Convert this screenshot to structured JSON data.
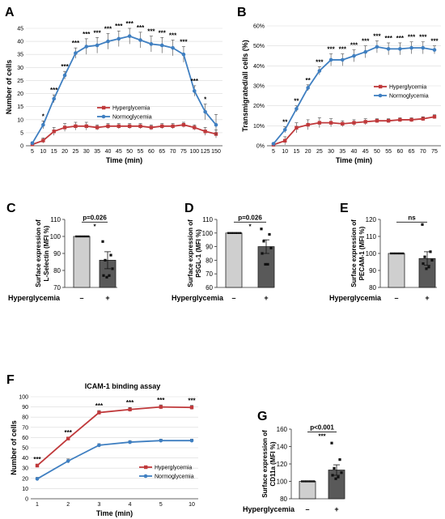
{
  "colors": {
    "hyper": "#c0393b",
    "normo": "#3f7fc1",
    "bar_light": "#cfcfcf",
    "bar_dark": "#595959",
    "axis": "#333333",
    "grid": "#d9d9d9"
  },
  "significance_rule": "—",
  "chart_data": [
    {
      "panel": "A",
      "type": "line",
      "title": "",
      "xlabel": "Time (min)",
      "ylabel": "Number of cells",
      "x": [
        "5",
        "10",
        "15",
        "20",
        "25",
        "30",
        "35",
        "40",
        "45",
        "50",
        "55",
        "60",
        "65",
        "70",
        "75",
        "100",
        "125",
        "150"
      ],
      "ylim": [
        0,
        45
      ],
      "yticks": [
        0,
        5,
        10,
        15,
        20,
        25,
        30,
        35,
        40,
        45
      ],
      "grid": true,
      "legend_position": "middle-left",
      "series": [
        {
          "name": "Hyperglycemia",
          "values": [
            0.5,
            2,
            5.5,
            7,
            7.5,
            7.5,
            7,
            7.5,
            7.5,
            7.5,
            7.5,
            7,
            7.5,
            7.5,
            8,
            7,
            5.5,
            4.5
          ],
          "errors": [
            0.5,
            1,
            1.5,
            1.5,
            1.5,
            1.5,
            1,
            1,
            1,
            1,
            1,
            1,
            1,
            1,
            1,
            1,
            1.5,
            1.5
          ]
        },
        {
          "name": "Normoglycemia",
          "values": [
            1,
            8,
            18,
            27,
            35.5,
            38,
            38.5,
            40,
            41,
            42,
            40.5,
            39,
            38.5,
            37.5,
            35,
            21,
            13,
            8
          ],
          "errors": [
            0.5,
            1.5,
            1.5,
            1.5,
            2,
            3,
            3,
            3,
            3,
            3,
            3,
            3,
            3,
            3,
            3,
            2,
            3,
            4
          ]
        }
      ],
      "annotations": [
        "",
        "*",
        "***",
        "***",
        "***",
        "***",
        "***",
        "***",
        "***",
        "***",
        "***",
        "***",
        "***",
        "***",
        "***",
        "***",
        "*",
        ""
      ]
    },
    {
      "panel": "B",
      "type": "line",
      "title": "",
      "xlabel": "Time (min)",
      "ylabel": "Transmigrated/all cells (%)",
      "x": [
        "5",
        "10",
        "15",
        "20",
        "25",
        "30",
        "35",
        "40",
        "45",
        "50",
        "55",
        "60",
        "65",
        "70",
        "75"
      ],
      "ylim": [
        0,
        60
      ],
      "yticks": [
        "0%",
        "10%",
        "20%",
        "30%",
        "40%",
        "50%",
        "60%"
      ],
      "grid": true,
      "legend_position": "middle-right",
      "series": [
        {
          "name": "Hyperglycemia",
          "values": [
            0.5,
            2.5,
            9,
            10.5,
            11.5,
            11.5,
            11,
            11.5,
            12,
            12.5,
            12.5,
            13,
            13,
            13.5,
            14.5
          ],
          "errors": [
            0.5,
            2,
            2.5,
            2.5,
            2.5,
            2,
            1.5,
            1.5,
            1.5,
            1,
            1,
            1,
            1,
            1,
            1
          ]
        },
        {
          "name": "Normoglycemia",
          "values": [
            1,
            8,
            18.5,
            29,
            37.5,
            43,
            43,
            45,
            47,
            49.5,
            48.5,
            48.5,
            49,
            49,
            48
          ],
          "errors": [
            0.5,
            1.5,
            1.5,
            1.5,
            2,
            3,
            3,
            3,
            3,
            3,
            3,
            3,
            3,
            3,
            2
          ]
        }
      ],
      "annotations": [
        "",
        "**",
        "**",
        "**",
        "***",
        "***",
        "***",
        "***",
        "***",
        "***",
        "***",
        "***",
        "***",
        "***",
        "***"
      ]
    },
    {
      "panel": "C",
      "type": "bar",
      "ylabel": "Surface expression of L-Selectin (MFI %)",
      "xlabel": "Hyperglycemia",
      "categories": [
        "–",
        "+"
      ],
      "values": [
        100,
        86
      ],
      "errors": [
        0,
        5
      ],
      "ylim": [
        70,
        110
      ],
      "yticks": [
        70,
        80,
        90,
        100,
        110
      ],
      "points": [
        [],
        [
          97,
          89,
          86,
          81,
          77,
          77,
          76
        ]
      ],
      "pvalue": "p=0.026",
      "stars": "*"
    },
    {
      "panel": "D",
      "type": "bar",
      "ylabel": "Surface expression of PSGL-1 (MFI %)",
      "xlabel": "Hyperglycemia",
      "categories": [
        "–",
        "+"
      ],
      "values": [
        100,
        90
      ],
      "errors": [
        0,
        5
      ],
      "ylim": [
        60,
        110
      ],
      "yticks": [
        60,
        70,
        80,
        90,
        100,
        110
      ],
      "points": [
        [],
        [
          103,
          99,
          94,
          89,
          85,
          77,
          77
        ]
      ],
      "pvalue": "p=0.026",
      "stars": "*"
    },
    {
      "panel": "E",
      "type": "bar",
      "ylabel": "Surface expression of PECAM-1 (MFI %)",
      "xlabel": "Hyperglycemia",
      "categories": [
        "–",
        "+"
      ],
      "values": [
        100,
        97
      ],
      "errors": [
        0,
        4
      ],
      "ylim": [
        80,
        120
      ],
      "yticks": [
        80,
        90,
        100,
        110,
        120
      ],
      "points": [
        [],
        [
          117,
          101,
          98,
          96,
          94,
          92,
          91
        ]
      ],
      "pvalue": "",
      "stars": "ns"
    },
    {
      "panel": "F",
      "type": "line",
      "title": "ICAM-1 binding assay",
      "xlabel": "Time (min)",
      "ylabel": "Number of cells",
      "x": [
        "1",
        "2",
        "3",
        "4",
        "5",
        "10"
      ],
      "ylim": [
        0,
        100
      ],
      "yticks": [
        0,
        10,
        20,
        30,
        40,
        50,
        60,
        70,
        80,
        90,
        100
      ],
      "grid": true,
      "legend_position": "bottom-right",
      "series": [
        {
          "name": "Hyperglycemia",
          "values": [
            32.5,
            59,
            84.5,
            87.5,
            90,
            89.5
          ],
          "errors": [
            1.5,
            1.5,
            2,
            2,
            2,
            2
          ]
        },
        {
          "name": "Normoglycemia",
          "values": [
            19.5,
            37,
            52.5,
            55.5,
            57,
            57
          ],
          "errors": [
            1.5,
            2,
            1.5,
            1.5,
            1.5,
            1.5
          ]
        }
      ],
      "annotations": [
        "***",
        "***",
        "***",
        "***",
        "***",
        "***"
      ]
    },
    {
      "panel": "G",
      "type": "bar",
      "ylabel": "Surface expression of CD11a (MFI %)",
      "xlabel": "Hyperglycemia",
      "categories": [
        "–",
        "+"
      ],
      "values": [
        100,
        113
      ],
      "errors": [
        0,
        6
      ],
      "ylim": [
        80,
        160
      ],
      "yticks": [
        80,
        100,
        120,
        140,
        160
      ],
      "points": [
        [],
        [
          144,
          125,
          115,
          110,
          107,
          105,
          103
        ]
      ],
      "pvalue": "p<0.001",
      "stars": "***"
    }
  ]
}
